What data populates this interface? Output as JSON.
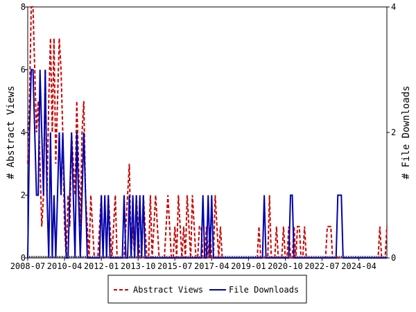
{
  "chart_data": {
    "type": "line",
    "x": [
      "2008-07",
      "2008-08",
      "2008-09",
      "2008-10",
      "2008-11",
      "2008-12",
      "2009-01",
      "2009-02",
      "2009-03",
      "2009-04",
      "2009-05",
      "2009-06",
      "2009-07",
      "2009-08",
      "2009-09",
      "2009-10",
      "2009-11",
      "2009-12",
      "2010-01",
      "2010-02",
      "2010-03",
      "2010-04",
      "2010-05",
      "2010-06",
      "2010-07",
      "2010-08",
      "2010-09",
      "2010-10",
      "2010-11",
      "2010-12",
      "2011-01",
      "2011-02",
      "2011-03",
      "2011-04",
      "2011-05",
      "2011-06",
      "2011-07",
      "2011-08",
      "2011-09",
      "2011-10",
      "2011-11",
      "2011-12",
      "2012-01",
      "2012-02",
      "2012-03",
      "2012-04",
      "2012-05",
      "2012-06",
      "2012-07",
      "2012-08",
      "2012-09",
      "2012-10",
      "2012-11",
      "2012-12",
      "2013-01",
      "2013-02",
      "2013-03",
      "2013-04",
      "2013-05",
      "2013-06",
      "2013-07",
      "2013-08",
      "2013-09",
      "2013-10",
      "2013-11",
      "2013-12",
      "2014-01",
      "2014-02",
      "2014-03",
      "2014-04",
      "2014-05",
      "2014-06",
      "2014-07",
      "2014-08",
      "2014-09",
      "2014-10",
      "2014-11",
      "2014-12",
      "2015-01",
      "2015-02",
      "2015-03",
      "2015-04",
      "2015-05",
      "2015-06",
      "2015-07",
      "2015-08",
      "2015-09",
      "2015-10",
      "2015-11",
      "2015-12",
      "2016-01",
      "2016-02",
      "2016-03",
      "2016-04",
      "2016-05",
      "2016-06",
      "2016-07",
      "2016-08",
      "2016-09",
      "2016-10",
      "2016-11",
      "2016-12",
      "2017-01",
      "2017-02",
      "2017-03",
      "2017-04",
      "2017-05",
      "2017-06",
      "2017-07",
      "2017-08",
      "2017-09",
      "2017-10",
      "2017-11",
      "2017-12",
      "2018-01",
      "2018-02",
      "2018-03",
      "2018-04",
      "2018-05",
      "2018-06",
      "2018-07",
      "2018-08",
      "2018-09",
      "2018-10",
      "2018-11",
      "2018-12",
      "2019-01",
      "2019-02",
      "2019-03",
      "2019-04",
      "2019-05",
      "2019-06",
      "2019-07",
      "2019-08",
      "2019-09",
      "2019-10",
      "2019-11",
      "2019-12",
      "2020-01",
      "2020-02",
      "2020-03",
      "2020-04",
      "2020-05",
      "2020-06",
      "2020-07",
      "2020-08",
      "2020-09",
      "2020-10",
      "2020-11",
      "2020-12",
      "2021-01",
      "2021-02",
      "2021-03",
      "2021-04",
      "2021-05",
      "2021-06",
      "2021-07",
      "2021-08",
      "2021-09",
      "2021-10",
      "2021-11",
      "2021-12",
      "2022-01",
      "2022-02",
      "2022-03",
      "2022-04",
      "2022-05",
      "2022-06",
      "2022-07",
      "2022-08",
      "2022-09",
      "2022-10",
      "2022-11",
      "2022-12",
      "2023-01",
      "2023-02",
      "2023-03",
      "2023-04",
      "2023-05",
      "2023-06",
      "2023-07",
      "2023-08",
      "2023-09",
      "2023-10",
      "2023-11",
      "2023-12",
      "2024-01",
      "2024-02",
      "2024-03",
      "2024-04",
      "2024-05",
      "2024-06",
      "2024-07",
      "2024-08",
      "2024-09",
      "2024-10",
      "2024-11",
      "2024-12",
      "2025-01",
      "2025-02",
      "2025-03",
      "2025-04",
      "2025-05",
      "2025-06",
      "2025-07",
      "2025-08"
    ],
    "xticks": [
      "2008-07",
      "2010-04",
      "2012-01",
      "2013-10",
      "2015-07",
      "2017-04",
      "2019-01",
      "2020-10",
      "2022-07",
      "2024-04"
    ],
    "ylabel": "# Abstract Views",
    "y2label": "# File Downloads",
    "ylim": [
      0,
      8
    ],
    "yticks": [
      0,
      2,
      4,
      6,
      8
    ],
    "y2lim": [
      0,
      4
    ],
    "y2ticks": [
      0,
      2,
      4
    ],
    "series": [
      {
        "name": "Abstract Views",
        "color": "#cc0000",
        "dash": true,
        "values": [
          3,
          5,
          8,
          8,
          6,
          4,
          5,
          3,
          1,
          2,
          6,
          2,
          5,
          7,
          4,
          7,
          3,
          5,
          7,
          6,
          4,
          1,
          0,
          2,
          1,
          4,
          3,
          2,
          5,
          3,
          1,
          4,
          5,
          2,
          1,
          0,
          2,
          1,
          0,
          0,
          0,
          1,
          2,
          0,
          0,
          0,
          2,
          1,
          0,
          1,
          2,
          0,
          0,
          0,
          0,
          0,
          1,
          2,
          3,
          0,
          1,
          0,
          2,
          1,
          0,
          0,
          2,
          1,
          0,
          0,
          2,
          0,
          1,
          2,
          1,
          0,
          0,
          0,
          0,
          1,
          2,
          1,
          0,
          0,
          1,
          0,
          2,
          1,
          0,
          1,
          0,
          2,
          1,
          0,
          2,
          1,
          0,
          0,
          1,
          1,
          0,
          0,
          1,
          0,
          1,
          0,
          0,
          2,
          1,
          0,
          1,
          0,
          0,
          0,
          0,
          0,
          0,
          0,
          0,
          0,
          0,
          0,
          0,
          0,
          0,
          0,
          0,
          0,
          0,
          0,
          0,
          0,
          1,
          0,
          0,
          0,
          0,
          0,
          2,
          0,
          0,
          0,
          1,
          0,
          0,
          0,
          1,
          0,
          0,
          1,
          0,
          0,
          1,
          0,
          1,
          1,
          0,
          0,
          1,
          0,
          0,
          0,
          0,
          0,
          0,
          0,
          0,
          0,
          0,
          0,
          0,
          1,
          1,
          1,
          0,
          0,
          0,
          0,
          0,
          0,
          0,
          0,
          0,
          0,
          0,
          0,
          0,
          0,
          0,
          0,
          0,
          0,
          0,
          0,
          0,
          0,
          0,
          0,
          0,
          0,
          0,
          1,
          0,
          0,
          0,
          1
        ]
      },
      {
        "name": "File Downloads",
        "color": "#0000aa",
        "dash": false,
        "axis": "y2",
        "values": [
          0,
          2,
          3,
          3,
          2,
          1,
          1,
          3,
          2,
          1,
          3,
          1,
          0,
          2,
          0,
          1,
          0,
          1,
          2,
          1,
          2,
          1,
          0,
          0,
          1,
          2,
          1,
          0,
          2,
          1,
          0,
          1,
          2,
          1,
          0,
          0,
          0,
          0,
          0,
          0,
          0,
          0,
          1,
          0,
          1,
          0,
          1,
          0,
          0,
          0,
          0,
          0,
          0,
          0,
          0,
          1,
          0,
          0,
          1,
          0,
          1,
          0,
          1,
          0,
          1,
          0,
          1,
          0,
          0,
          0,
          0,
          0,
          0,
          0,
          0,
          0,
          0,
          0,
          0,
          0,
          0,
          0,
          0,
          0,
          0,
          0,
          0,
          0,
          0,
          0,
          0,
          0,
          0,
          0,
          0,
          0,
          0,
          0,
          0,
          0,
          1,
          0,
          0,
          1,
          0,
          1,
          0,
          0,
          0,
          0,
          0,
          0,
          0,
          0,
          0,
          0,
          0,
          0,
          0,
          0,
          0,
          0,
          0,
          0,
          0,
          0,
          0,
          0,
          0,
          0,
          0,
          0,
          0,
          0,
          0,
          1,
          0,
          0,
          0,
          0,
          0,
          0,
          0,
          0,
          0,
          0,
          0,
          0,
          0,
          0,
          1,
          1,
          0,
          0,
          0,
          0,
          0,
          0,
          0,
          0,
          0,
          0,
          0,
          0,
          0,
          0,
          0,
          0,
          0,
          0,
          0,
          0,
          0,
          0,
          0,
          0,
          0,
          1,
          1,
          1,
          0,
          0,
          0,
          0,
          0,
          0,
          0,
          0,
          0,
          0,
          0,
          0,
          0,
          0,
          0,
          0,
          0,
          0,
          0,
          0,
          0,
          0,
          0,
          0,
          0,
          0
        ]
      }
    ]
  }
}
